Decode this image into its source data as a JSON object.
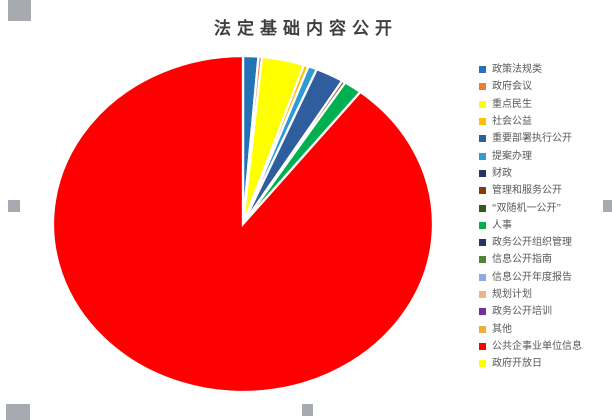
{
  "title": "法定基础内容公开",
  "chart_data": {
    "type": "pie",
    "title": "法定基础内容公开",
    "legend_position": "right",
    "start_angle_deg": 0,
    "clockwise": true,
    "categories": [
      "政策法规类",
      "政府会议",
      "重点民生",
      "社会公益",
      "重要部署执行公开",
      "提案办理",
      "财政",
      "管理和服务公开",
      "“双随机一公开”",
      "人事",
      "政务公开组织管理",
      "信息公开指南",
      "信息公开年度报告",
      "规划计划",
      "政务公开培训",
      "其他",
      "公共企事业单位信息",
      "政府开放日"
    ],
    "values": [
      1.3,
      0.3,
      3.6,
      0.4,
      2.4,
      0.75,
      0,
      0.3,
      0,
      1.55,
      0,
      0,
      0,
      0,
      0,
      0,
      89.4,
      0
    ],
    "colors": [
      "#2473B5",
      "#ED7D31",
      "#FFFF00",
      "#FFC000",
      "#2F5D9E",
      "#2E9BD5",
      "#1F3864",
      "#843C0C",
      "#375623",
      "#00B050",
      "#203864",
      "#538135",
      "#8FAADC",
      "#F4B183",
      "#7030A0",
      "#EFAF3C",
      "#FF0000",
      "#FFFF00"
    ],
    "slices_draw_order": [
      {
        "label": "政策法规类",
        "value": 1.3,
        "color": "#2473B5"
      },
      {
        "label": "政府会议",
        "value": 0.3,
        "color": "#ED7D31"
      },
      {
        "label": "重点民生",
        "value": 3.6,
        "color": "#FFFF00"
      },
      {
        "label": "社会公益",
        "value": 0.4,
        "color": "#FFC000"
      },
      {
        "label": "提案办理",
        "value": 0.75,
        "color": "#2E9BD5"
      },
      {
        "label": "重要部署执行公开",
        "value": 2.4,
        "color": "#2F5D9E"
      },
      {
        "label": "管理和服务公开",
        "value": 0.3,
        "color": "#843C0C"
      },
      {
        "label": "人事",
        "value": 1.55,
        "color": "#00B050"
      },
      {
        "label": "公共企事业单位信息",
        "value": 89.4,
        "color": "#FF0000"
      }
    ]
  },
  "legend": {
    "items": [
      {
        "label": "政策法规类",
        "color": "#2473B5"
      },
      {
        "label": "政府会议",
        "color": "#ED7D31"
      },
      {
        "label": "重点民生",
        "color": "#FFFF00"
      },
      {
        "label": "社会公益",
        "color": "#FFC000"
      },
      {
        "label": "重要部署执行公开",
        "color": "#2F5D9E"
      },
      {
        "label": "提案办理",
        "color": "#2E9BD5"
      },
      {
        "label": "财政",
        "color": "#1F3864"
      },
      {
        "label": "管理和服务公开",
        "color": "#843C0C"
      },
      {
        "label": "“双随机一公开”",
        "color": "#375623"
      },
      {
        "label": "人事",
        "color": "#00B050"
      },
      {
        "label": "政务公开组织管理",
        "color": "#203864"
      },
      {
        "label": "信息公开指南",
        "color": "#538135"
      },
      {
        "label": "信息公开年度报告",
        "color": "#8FAADC"
      },
      {
        "label": "规划计划",
        "color": "#F4B183"
      },
      {
        "label": "政务公开培训",
        "color": "#7030A0"
      },
      {
        "label": "其他",
        "color": "#EFAF3C"
      },
      {
        "label": "公共企事业单位信息",
        "color": "#FF0000"
      },
      {
        "label": "政府开放日",
        "color": "#FFFF00"
      }
    ]
  },
  "selection": {
    "handles_visible": [
      "top-left",
      "middle-left",
      "bottom-left",
      "bottom-center",
      "middle-right"
    ],
    "handle_color": "#A8AAB2"
  }
}
